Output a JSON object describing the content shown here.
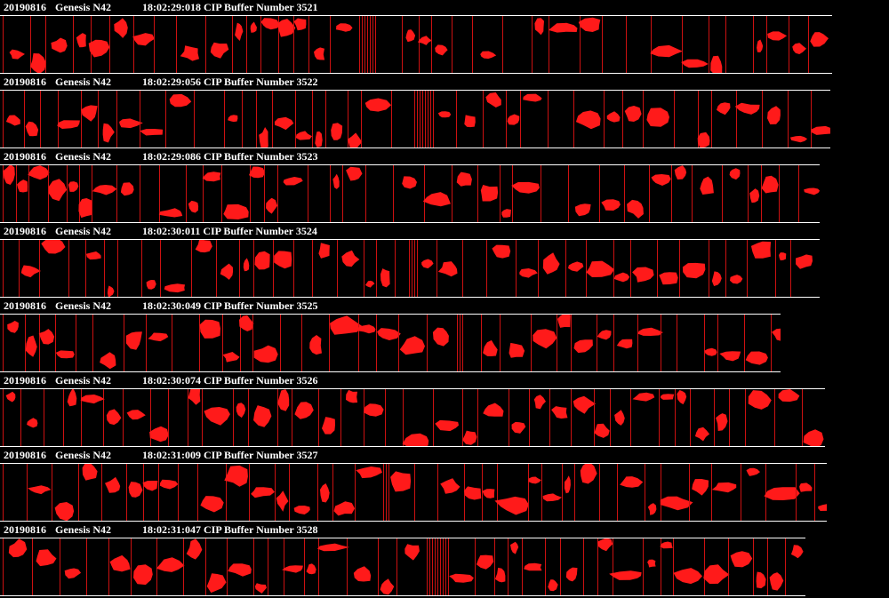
{
  "colors": {
    "background": "#000000",
    "text": "#ffffff",
    "particle": "#ff1a1a",
    "boundary": "#cc1111"
  },
  "strips": [
    {
      "date": "20190816",
      "probe": "Genesis N42",
      "time_label": "18:02:29:018 CIP Buffer Number 3521"
    },
    {
      "date": "20190816",
      "probe": "Genesis N42",
      "time_label": "18:02:29:056 CIP Buffer Number 3522"
    },
    {
      "date": "20190816",
      "probe": "Genesis N42",
      "time_label": "18:02:29:086 CIP Buffer Number 3523"
    },
    {
      "date": "20190816",
      "probe": "Genesis N42",
      "time_label": "18:02:30:011 CIP Buffer Number 3524"
    },
    {
      "date": "20190816",
      "probe": "Genesis N42",
      "time_label": "18:02:30:049 CIP Buffer Number 3525"
    },
    {
      "date": "20190816",
      "probe": "Genesis N42",
      "time_label": "18:02:30:074 CIP Buffer Number 3526"
    },
    {
      "date": "20190816",
      "probe": "Genesis N42",
      "time_label": "18:02:31:009 CIP Buffer Number 3527"
    },
    {
      "date": "20190816",
      "probe": "Genesis N42",
      "time_label": "18:02:31:047 CIP Buffer Number 3528"
    }
  ]
}
